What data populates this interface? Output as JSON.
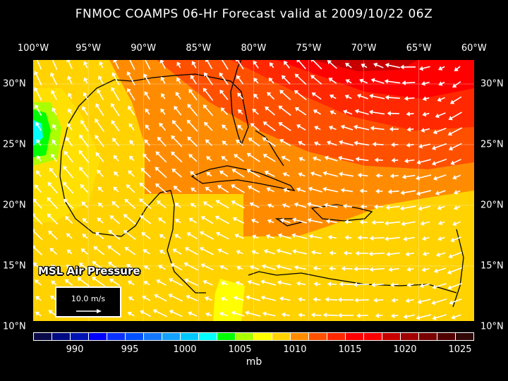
{
  "title": "FNMOC COAMPS 06-Hr Forecast valid at 2009/10/22 06Z",
  "lon_labels": [
    "100°W",
    "95°W",
    "90°W",
    "85°W",
    "80°W",
    "75°W",
    "70°W",
    "65°W",
    "60°W"
  ],
  "lat_labels": [
    "30°N",
    "25°N",
    "20°N",
    "15°N",
    "10°N"
  ],
  "field_label": "MSL Air Pressure",
  "vector_legend": {
    "label": "10.0 m/s"
  },
  "colorbar": {
    "unit": "mb",
    "tick_labels": [
      "990",
      "995",
      "1000",
      "1005",
      "1010",
      "1015",
      "1020",
      "1025"
    ],
    "colors": [
      "#0a0a4a",
      "#000a82",
      "#0014b4",
      "#0000ff",
      "#0a32ff",
      "#0050ff",
      "#1478ff",
      "#14a0ff",
      "#00c8ff",
      "#00ffff",
      "#00ff00",
      "#aaff00",
      "#ffff00",
      "#ffd200",
      "#ff8c00",
      "#ff5000",
      "#ff2800",
      "#ff0000",
      "#ff0000",
      "#c80000",
      "#a00000",
      "#780000",
      "#500000",
      "#300808"
    ]
  }
}
